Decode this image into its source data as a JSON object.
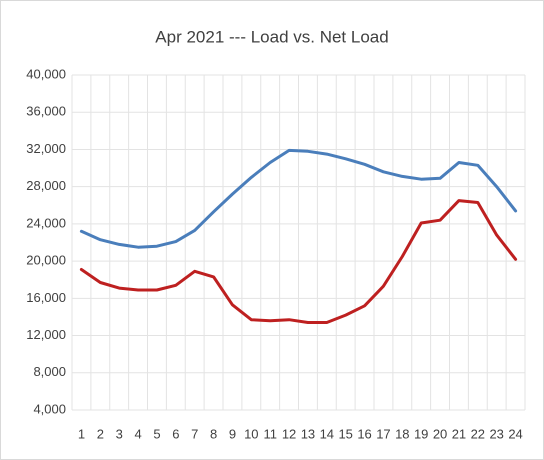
{
  "chart_data": {
    "type": "line",
    "title": "Apr 2021 --- Load vs. Net Load",
    "categories": [
      "1",
      "2",
      "3",
      "4",
      "5",
      "6",
      "7",
      "8",
      "9",
      "10",
      "11",
      "12",
      "13",
      "14",
      "15",
      "16",
      "17",
      "18",
      "19",
      "20",
      "21",
      "22",
      "23",
      "24"
    ],
    "series": [
      {
        "color": "#4a7ebb",
        "values": [
          23200,
          22300,
          21800,
          21500,
          21600,
          22100,
          23300,
          25300,
          27200,
          29000,
          30600,
          31900,
          31800,
          31500,
          31000,
          30400,
          29600,
          29100,
          28800,
          28900,
          30600,
          30300,
          28000,
          25400
        ]
      },
      {
        "color": "#be2020",
        "values": [
          19100,
          17700,
          17100,
          16900,
          16900,
          17400,
          18900,
          18300,
          15300,
          13700,
          13600,
          13700,
          13400,
          13400,
          14200,
          15200,
          17300,
          20500,
          24100,
          24400,
          26500,
          26300,
          22800,
          20200
        ]
      }
    ],
    "ylim": [
      4000,
      40000
    ],
    "yticks": [
      {
        "value": 4000,
        "label": "4,000"
      },
      {
        "value": 8000,
        "label": "8,000"
      },
      {
        "value": 12000,
        "label": "12,000"
      },
      {
        "value": 16000,
        "label": "16,000"
      },
      {
        "value": 20000,
        "label": "20,000"
      },
      {
        "value": 24000,
        "label": "24,000"
      },
      {
        "value": 28000,
        "label": "28,000"
      },
      {
        "value": 32000,
        "label": "32,000"
      },
      {
        "value": 36000,
        "label": "36,000"
      },
      {
        "value": 40000,
        "label": "40,000"
      }
    ],
    "grid": true
  }
}
